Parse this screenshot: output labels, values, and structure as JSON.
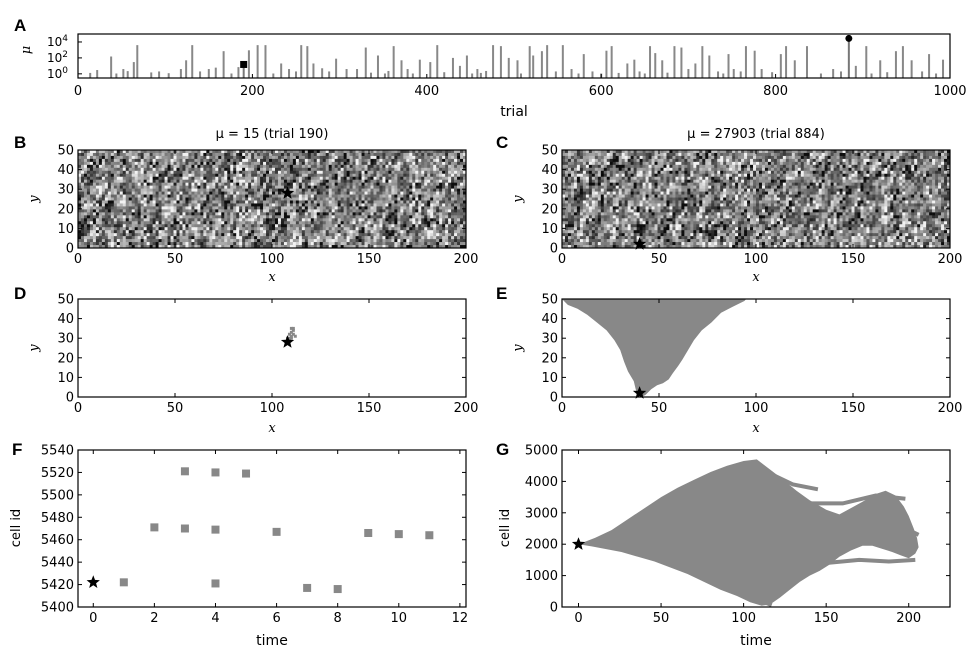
{
  "chart_data": [
    {
      "id": "A",
      "type": "bar",
      "panel_letter": "A",
      "xlabel": "trial",
      "ylabel": "μ",
      "xlim": [
        0,
        1000
      ],
      "x_ticks": [
        0,
        200,
        400,
        600,
        800,
        1000
      ],
      "y_scale": "log",
      "ylim": [
        0.3,
        100000
      ],
      "y_tick_values": [
        1,
        100,
        10000
      ],
      "y_tick_labels": [
        "10^0",
        "10^2",
        "10^4"
      ],
      "bar_color": "#888888",
      "bars": [
        [
          14,
          1.3
        ],
        [
          22,
          3
        ],
        [
          38,
          150
        ],
        [
          44,
          1.1
        ],
        [
          52,
          4
        ],
        [
          57,
          2.2
        ],
        [
          64,
          30
        ],
        [
          68,
          4000
        ],
        [
          84,
          1.5
        ],
        [
          93,
          2
        ],
        [
          104,
          1.2
        ],
        [
          118,
          4
        ],
        [
          124,
          50
        ],
        [
          131,
          4000
        ],
        [
          140,
          2
        ],
        [
          150,
          4
        ],
        [
          158,
          6
        ],
        [
          167,
          700
        ],
        [
          176,
          1.1
        ],
        [
          184,
          7
        ],
        [
          196,
          900
        ],
        [
          206,
          4000
        ],
        [
          215,
          4000
        ],
        [
          224,
          1.1
        ],
        [
          233,
          20
        ],
        [
          242,
          4
        ],
        [
          250,
          2
        ],
        [
          256,
          4000
        ],
        [
          263,
          3000
        ],
        [
          270,
          20
        ],
        [
          280,
          5
        ],
        [
          288,
          2
        ],
        [
          296,
          80
        ],
        [
          308,
          4
        ],
        [
          320,
          4
        ],
        [
          330,
          2000
        ],
        [
          336,
          1.4
        ],
        [
          344,
          200
        ],
        [
          352,
          1.1
        ],
        [
          356,
          2.3
        ],
        [
          362,
          3000
        ],
        [
          371,
          50
        ],
        [
          378,
          4
        ],
        [
          384,
          1.1
        ],
        [
          392,
          60
        ],
        [
          404,
          30
        ],
        [
          412,
          4000
        ],
        [
          420,
          1.6
        ],
        [
          430,
          100
        ],
        [
          438,
          10
        ],
        [
          446,
          200
        ],
        [
          452,
          1.1
        ],
        [
          458,
          4
        ],
        [
          462,
          1.3
        ],
        [
          468,
          2.3
        ],
        [
          476,
          4000
        ],
        [
          485,
          3000
        ],
        [
          494,
          100
        ],
        [
          504,
          50
        ],
        [
          508,
          1.1
        ],
        [
          518,
          3000
        ],
        [
          522,
          200
        ],
        [
          532,
          700
        ],
        [
          538,
          4000
        ],
        [
          548,
          2
        ],
        [
          556,
          4000
        ],
        [
          566,
          4
        ],
        [
          574,
          1.1
        ],
        [
          580,
          300
        ],
        [
          590,
          2
        ],
        [
          600,
          1.1
        ],
        [
          606,
          800
        ],
        [
          612,
          3000
        ],
        [
          620,
          1.3
        ],
        [
          630,
          20
        ],
        [
          638,
          60
        ],
        [
          644,
          2
        ],
        [
          650,
          1.1
        ],
        [
          656,
          3000
        ],
        [
          662,
          400
        ],
        [
          670,
          50
        ],
        [
          676,
          1.4
        ],
        [
          684,
          3000
        ],
        [
          692,
          2000
        ],
        [
          700,
          4
        ],
        [
          708,
          20
        ],
        [
          716,
          3000
        ],
        [
          724,
          200
        ],
        [
          734,
          2
        ],
        [
          740,
          1.1
        ],
        [
          746,
          300
        ],
        [
          752,
          4
        ],
        [
          760,
          2
        ],
        [
          766,
          3000
        ],
        [
          776,
          800
        ],
        [
          784,
          4
        ],
        [
          796,
          1.6
        ],
        [
          806,
          300
        ],
        [
          812,
          3000
        ],
        [
          822,
          50
        ],
        [
          836,
          3000
        ],
        [
          852,
          1.1
        ],
        [
          866,
          4
        ],
        [
          875,
          2
        ],
        [
          892,
          10
        ],
        [
          904,
          3000
        ],
        [
          910,
          1.1
        ],
        [
          920,
          50
        ],
        [
          928,
          1.6
        ],
        [
          938,
          700
        ],
        [
          946,
          3000
        ],
        [
          956,
          50
        ],
        [
          968,
          2
        ],
        [
          976,
          300
        ],
        [
          984,
          1.1
        ],
        [
          992,
          60
        ]
      ],
      "markers": [
        {
          "shape": "square",
          "x": 190,
          "y": 15
        },
        {
          "shape": "circle",
          "x": 884,
          "y": 27903
        }
      ]
    },
    {
      "id": "B",
      "type": "heatmap",
      "panel_letter": "B",
      "title": "μ = 15 (trial 190)",
      "xlabel": "x",
      "ylabel": "y",
      "xlim": [
        0,
        200
      ],
      "ylim": [
        0,
        50
      ],
      "x_ticks": [
        0,
        50,
        100,
        150,
        200
      ],
      "y_ticks": [
        0,
        10,
        20,
        30,
        40,
        50
      ],
      "colormap": "grayscale",
      "star": {
        "x": 108,
        "y": 28
      }
    },
    {
      "id": "C",
      "type": "heatmap",
      "panel_letter": "C",
      "title": "μ = 27903 (trial 884)",
      "xlabel": "x",
      "ylabel": "y",
      "xlim": [
        0,
        200
      ],
      "ylim": [
        0,
        50
      ],
      "x_ticks": [
        0,
        50,
        100,
        150,
        200
      ],
      "y_ticks": [
        0,
        10,
        20,
        30,
        40,
        50
      ],
      "colormap": "grayscale",
      "star": {
        "x": 40,
        "y": 2
      }
    },
    {
      "id": "D",
      "type": "scatter",
      "panel_letter": "D",
      "xlabel": "x",
      "ylabel": "y",
      "xlim": [
        0,
        200
      ],
      "ylim": [
        0,
        50
      ],
      "x_ticks": [
        0,
        50,
        100,
        150,
        200
      ],
      "y_ticks": [
        0,
        10,
        20,
        30,
        40,
        50
      ],
      "color": "#888888",
      "cells": [
        [
          108,
          28
        ],
        [
          109,
          29
        ],
        [
          109,
          30
        ],
        [
          110,
          30
        ],
        [
          110,
          31
        ],
        [
          109,
          32
        ],
        [
          111,
          32
        ],
        [
          110,
          33
        ],
        [
          111,
          34
        ],
        [
          110,
          35
        ],
        [
          111,
          35
        ],
        [
          112,
          31
        ],
        [
          108,
          30
        ]
      ],
      "star": {
        "x": 108,
        "y": 28
      }
    },
    {
      "id": "E",
      "type": "area",
      "panel_letter": "E",
      "xlabel": "x",
      "ylabel": "y",
      "xlim": [
        0,
        200
      ],
      "ylim": [
        0,
        50
      ],
      "x_ticks": [
        0,
        50,
        100,
        150,
        200
      ],
      "y_ticks": [
        0,
        10,
        20,
        30,
        40,
        50
      ],
      "color": "#888888",
      "region": [
        [
          0,
          50
        ],
        [
          3,
          47
        ],
        [
          8,
          45
        ],
        [
          13,
          42
        ],
        [
          18,
          38
        ],
        [
          23,
          34
        ],
        [
          27,
          29
        ],
        [
          30,
          24
        ],
        [
          32,
          18
        ],
        [
          34,
          13
        ],
        [
          37,
          8
        ],
        [
          38,
          4
        ],
        [
          39,
          1
        ],
        [
          41,
          0
        ],
        [
          43,
          1
        ],
        [
          46,
          4
        ],
        [
          49,
          6
        ],
        [
          52,
          7
        ],
        [
          55,
          9
        ],
        [
          57,
          12
        ],
        [
          60,
          16
        ],
        [
          62,
          19
        ],
        [
          65,
          24
        ],
        [
          68,
          29
        ],
        [
          72,
          34
        ],
        [
          77,
          38
        ],
        [
          82,
          43
        ],
        [
          88,
          46
        ],
        [
          94,
          49
        ],
        [
          95,
          50
        ]
      ],
      "star": {
        "x": 40,
        "y": 2
      }
    },
    {
      "id": "F",
      "type": "scatter",
      "panel_letter": "F",
      "xlabel": "time",
      "ylabel": "cell id",
      "xlim": [
        -0.5,
        12.2
      ],
      "ylim": [
        5400,
        5540
      ],
      "x_ticks": [
        0,
        2,
        4,
        6,
        8,
        10,
        12
      ],
      "y_ticks": [
        5400,
        5420,
        5440,
        5460,
        5480,
        5500,
        5520,
        5540
      ],
      "color": "#888888",
      "points": [
        [
          1,
          5422
        ],
        [
          2,
          5471
        ],
        [
          3,
          5521
        ],
        [
          3,
          5470
        ],
        [
          4,
          5520
        ],
        [
          4,
          5469
        ],
        [
          4,
          5421
        ],
        [
          5,
          5519
        ],
        [
          6,
          5467
        ],
        [
          7,
          5417
        ],
        [
          8,
          5416
        ],
        [
          9,
          5466
        ],
        [
          10,
          5465
        ],
        [
          11,
          5464
        ]
      ],
      "star": {
        "x": 0,
        "y": 5422
      }
    },
    {
      "id": "G",
      "type": "area",
      "panel_letter": "G",
      "xlabel": "time",
      "ylabel": "cell id",
      "xlim": [
        -10,
        225
      ],
      "ylim": [
        0,
        5000
      ],
      "x_ticks": [
        0,
        50,
        100,
        150,
        200
      ],
      "y_ticks": [
        0,
        1000,
        2000,
        3000,
        4000,
        5000
      ],
      "color": "#888888",
      "region": [
        [
          0,
          2000
        ],
        [
          10,
          2200
        ],
        [
          20,
          2450
        ],
        [
          30,
          2800
        ],
        [
          40,
          3150
        ],
        [
          50,
          3500
        ],
        [
          60,
          3800
        ],
        [
          70,
          4050
        ],
        [
          80,
          4300
        ],
        [
          90,
          4500
        ],
        [
          100,
          4650
        ],
        [
          108,
          4700
        ],
        [
          113,
          4500
        ],
        [
          118,
          4300
        ],
        [
          124,
          4050
        ],
        [
          132,
          3700
        ],
        [
          140,
          3400
        ],
        [
          150,
          3100
        ],
        [
          158,
          2950
        ],
        [
          165,
          3150
        ],
        [
          172,
          3350
        ],
        [
          180,
          3600
        ],
        [
          186,
          3700
        ],
        [
          192,
          3550
        ],
        [
          197,
          3200
        ],
        [
          200,
          2900
        ],
        [
          203,
          2500
        ],
        [
          205,
          2200
        ],
        [
          206,
          1900
        ],
        [
          204,
          1700
        ],
        [
          200,
          1550
        ],
        [
          195,
          1650
        ],
        [
          190,
          1750
        ],
        [
          184,
          1850
        ],
        [
          178,
          1950
        ],
        [
          172,
          1950
        ],
        [
          165,
          1800
        ],
        [
          158,
          1600
        ],
        [
          152,
          1350
        ],
        [
          146,
          1150
        ],
        [
          140,
          1000
        ],
        [
          134,
          800
        ],
        [
          128,
          550
        ],
        [
          122,
          300
        ],
        [
          116,
          80
        ],
        [
          111,
          40
        ],
        [
          104,
          150
        ],
        [
          96,
          350
        ],
        [
          86,
          550
        ],
        [
          76,
          800
        ],
        [
          66,
          1050
        ],
        [
          56,
          1250
        ],
        [
          46,
          1450
        ],
        [
          36,
          1600
        ],
        [
          26,
          1750
        ],
        [
          16,
          1850
        ],
        [
          8,
          1930
        ]
      ],
      "branches": [
        [
          [
            125,
            2350
          ],
          [
            150,
            2450
          ],
          [
            175,
            2500
          ],
          [
            200,
            2450
          ],
          [
            206,
            2300
          ]
        ],
        [
          [
            140,
            3300
          ],
          [
            160,
            3300
          ],
          [
            180,
            3550
          ],
          [
            198,
            3450
          ]
        ],
        [
          [
            150,
            1400
          ],
          [
            170,
            1500
          ],
          [
            188,
            1450
          ],
          [
            204,
            1500
          ]
        ],
        [
          [
            110,
            4400
          ],
          [
            120,
            4150
          ],
          [
            130,
            3900
          ],
          [
            145,
            3750
          ]
        ],
        [
          [
            95,
            550
          ],
          [
            108,
            250
          ],
          [
            117,
            60
          ]
        ]
      ],
      "star": {
        "x": 0,
        "y": 2000
      }
    }
  ]
}
